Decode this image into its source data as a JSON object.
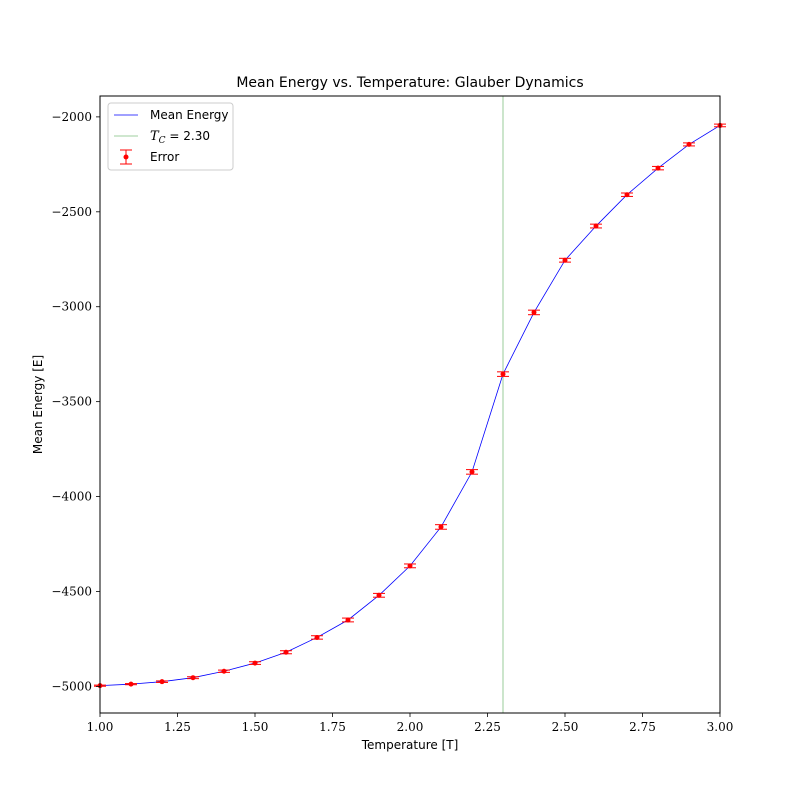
{
  "chart_data": {
    "type": "line",
    "title": "Mean Energy vs. Temperature: Glauber Dynamics",
    "xlabel": "Temperature [T]",
    "ylabel": "Mean Energy [E]",
    "xlim": [
      1.0,
      3.0
    ],
    "ylim": [
      -5140,
      -1890
    ],
    "x_ticks": [
      "1.00",
      "1.25",
      "1.50",
      "1.75",
      "2.00",
      "2.25",
      "2.50",
      "2.75",
      "3.00"
    ],
    "x_tick_values": [
      1.0,
      1.25,
      1.5,
      1.75,
      2.0,
      2.25,
      2.5,
      2.75,
      3.0
    ],
    "y_ticks": [
      "−5000",
      "−4500",
      "−4000",
      "−3500",
      "−3000",
      "−2500",
      "−2000"
    ],
    "y_tick_values": [
      -5000,
      -4500,
      -4000,
      -3500,
      -3000,
      -2500,
      -2000
    ],
    "grid": false,
    "legend_position": "top-left",
    "x": [
      1.0,
      1.1,
      1.2,
      1.3,
      1.4,
      1.5,
      1.6,
      1.7,
      1.8,
      1.9,
      2.0,
      2.1,
      2.2,
      2.3,
      2.4,
      2.5,
      2.6,
      2.7,
      2.8,
      2.9,
      3.0
    ],
    "series": [
      {
        "name": "Mean Energy",
        "color": "#0000ff",
        "values": [
          -4996,
          -4988,
          -4975,
          -4954,
          -4920,
          -4877,
          -4820,
          -4742,
          -4650,
          -4520,
          -4365,
          -4160,
          -3870,
          -3355,
          -3030,
          -2755,
          -2575,
          -2410,
          -2270,
          -2145,
          -2045
        ]
      }
    ],
    "error_series": {
      "name": "Error",
      "color": "#ff0000",
      "errors": [
        3,
        3,
        4,
        5,
        6,
        7,
        8,
        9,
        10,
        10,
        10,
        12,
        12,
        12,
        12,
        10,
        10,
        9,
        9,
        8,
        7
      ]
    },
    "vline": {
      "label_prefix": "T",
      "label_sub": "C",
      "label_suffix": " = 2.30",
      "value": 2.3,
      "color": "#7fbf7f"
    }
  }
}
